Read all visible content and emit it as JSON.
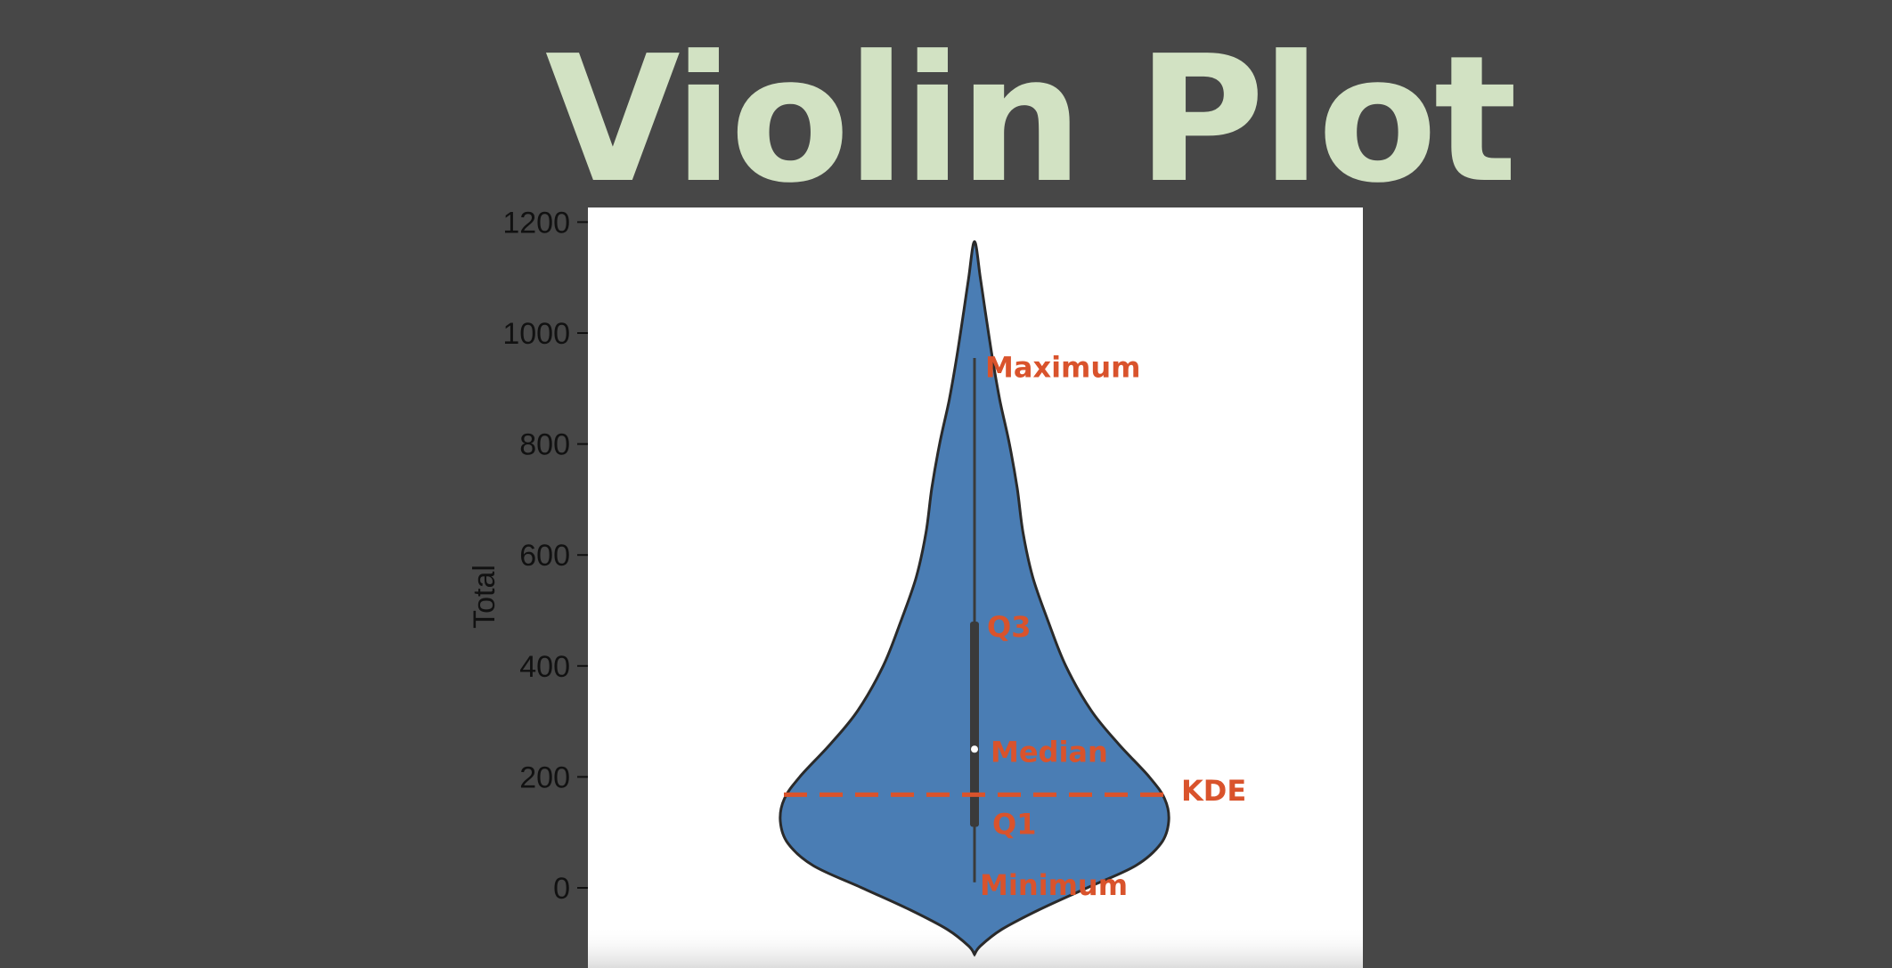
{
  "title": "Violin Plot",
  "chart_data": {
    "type": "violin",
    "ylabel": "Total",
    "ylim": [
      -15,
      1220
    ],
    "yticks": [
      0,
      200,
      400,
      600,
      800,
      1000,
      1200
    ],
    "grid": false,
    "violin": {
      "color": "#4a7db4",
      "edge_color": "#2a2a2a",
      "min": 10,
      "q1": 110,
      "median": 250,
      "q3": 480,
      "max": 955,
      "kde_extent": [
        -120,
        1165
      ],
      "density_profile": [
        {
          "y": -120,
          "w": 0.0
        },
        {
          "y": -105,
          "w": 0.03
        },
        {
          "y": -75,
          "w": 0.14
        },
        {
          "y": -40,
          "w": 0.33
        },
        {
          "y": 0,
          "w": 0.58
        },
        {
          "y": 40,
          "w": 0.83
        },
        {
          "y": 80,
          "w": 0.96
        },
        {
          "y": 120,
          "w": 1.0
        },
        {
          "y": 160,
          "w": 0.98
        },
        {
          "y": 200,
          "w": 0.9
        },
        {
          "y": 260,
          "w": 0.74
        },
        {
          "y": 320,
          "w": 0.6
        },
        {
          "y": 400,
          "w": 0.47
        },
        {
          "y": 480,
          "w": 0.38
        },
        {
          "y": 560,
          "w": 0.3
        },
        {
          "y": 640,
          "w": 0.25
        },
        {
          "y": 720,
          "w": 0.22
        },
        {
          "y": 800,
          "w": 0.18
        },
        {
          "y": 880,
          "w": 0.13
        },
        {
          "y": 960,
          "w": 0.09
        },
        {
          "y": 1040,
          "w": 0.055
        },
        {
          "y": 1100,
          "w": 0.03
        },
        {
          "y": 1165,
          "w": 0.0
        }
      ]
    },
    "kde_line": {
      "y": 168,
      "color": "#d9532c"
    },
    "annotations": [
      {
        "key": "maximum",
        "text": "Maximum",
        "y": 938
      },
      {
        "key": "q3",
        "text": "Q3",
        "y": 470
      },
      {
        "key": "median",
        "text": "Median",
        "y": 245
      },
      {
        "key": "kde",
        "text": "KDE",
        "y": 175
      },
      {
        "key": "q1",
        "text": "Q1",
        "y": 115
      },
      {
        "key": "minimum",
        "text": "Minimum",
        "y": 5
      }
    ]
  }
}
